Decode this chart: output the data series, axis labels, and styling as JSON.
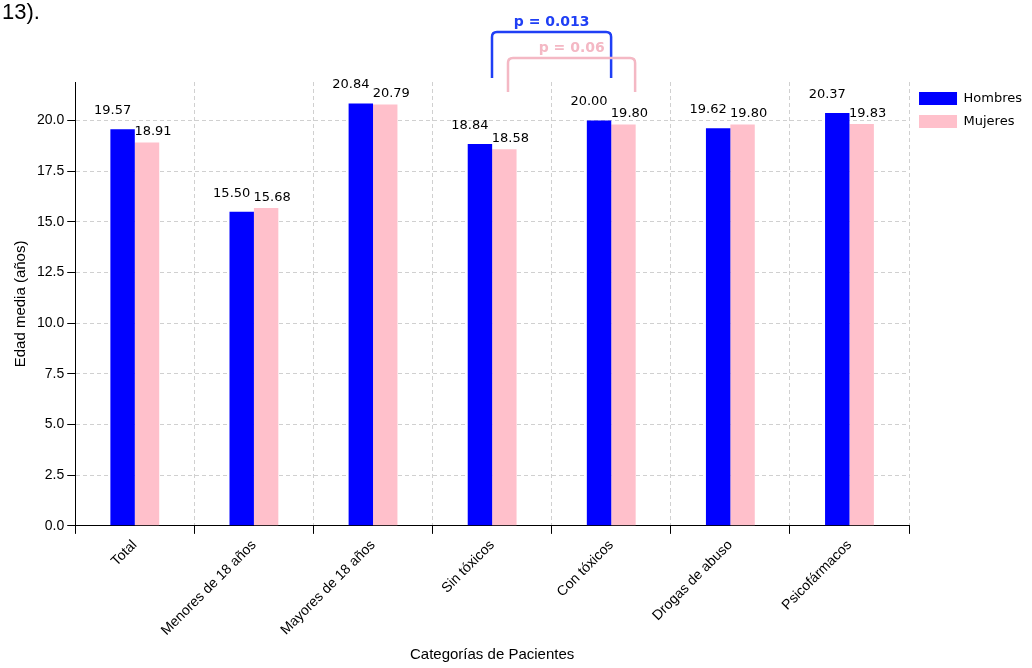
{
  "chart_data": {
    "type": "bar",
    "xlabel": "Categorías de Pacientes",
    "ylabel": "Edad media (años)",
    "categories": [
      "Total",
      "Menores de 18 años",
      "Mayores de 18 años",
      "Sin tóxicos",
      "Con tóxicos",
      "Drogas de abuso",
      "Psicofármacos"
    ],
    "series": [
      {
        "name": "Hombres",
        "color": "#0000ff",
        "values": [
          19.57,
          15.5,
          20.84,
          18.84,
          20.0,
          19.62,
          20.37
        ],
        "value_labels": [
          "19.57",
          "15.50",
          "20.84",
          "18.84",
          "20.00",
          "19.62",
          "20.37"
        ]
      },
      {
        "name": "Mujeres",
        "color": "#ffc0cb",
        "values": [
          18.91,
          15.68,
          20.79,
          18.58,
          19.8,
          19.8,
          19.83
        ],
        "value_labels": [
          "18.91",
          "15.68",
          "20.79",
          "18.58",
          "19.80",
          "19.80",
          "19.83"
        ]
      }
    ],
    "ylim": [
      0,
      21.9
    ],
    "yticks": [
      {
        "value": 0,
        "label": "0.0"
      },
      2.5,
      {
        "value": 5,
        "label": "5.0"
      },
      7.5,
      {
        "value": 10,
        "label": "10.0"
      },
      12.5,
      {
        "value": 15,
        "label": "15.0"
      },
      17.5,
      {
        "value": 20,
        "label": "20.0"
      }
    ],
    "grid": true,
    "legend": "top right",
    "annotations": [
      "13).",
      "p = 0.013",
      "p = 0.06"
    ]
  }
}
